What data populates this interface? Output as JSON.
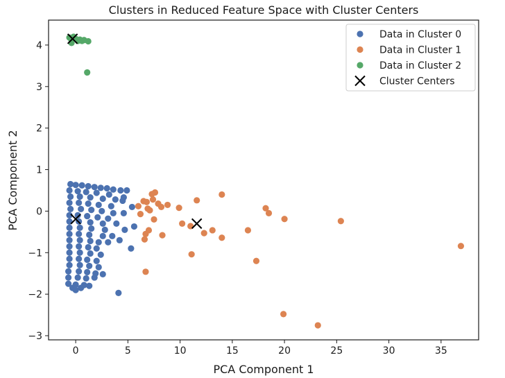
{
  "chart_data": {
    "type": "scatter",
    "title": "Clusters in Reduced Feature Space with Cluster Centers",
    "xlabel": "PCA Component 1",
    "ylabel": "PCA Component 2",
    "xlim": [
      -2.6,
      38.6
    ],
    "ylim": [
      -3.1,
      4.6
    ],
    "xticks": [
      0,
      5,
      10,
      15,
      20,
      25,
      30,
      35
    ],
    "yticks": [
      -3,
      -2,
      -1,
      0,
      1,
      2,
      3,
      4
    ],
    "grid": false,
    "legend_position": "top-right",
    "series": [
      {
        "name": "Data in Cluster 0",
        "color": "#4c72b0",
        "marker": "circle",
        "points": [
          [
            -0.5,
            0.65
          ],
          [
            0,
            0.63
          ],
          [
            0.6,
            0.62
          ],
          [
            1.2,
            0.6
          ],
          [
            1.8,
            0.58
          ],
          [
            2.4,
            0.56
          ],
          [
            3,
            0.55
          ],
          [
            3.6,
            0.52
          ],
          [
            4.3,
            0.5
          ],
          [
            4.9,
            0.5
          ],
          [
            -0.6,
            0.5
          ],
          [
            0.2,
            0.48
          ],
          [
            1,
            0.46
          ],
          [
            2,
            0.44
          ],
          [
            3.2,
            0.4
          ],
          [
            4.6,
            0.33
          ],
          [
            -0.5,
            0.35
          ],
          [
            0.4,
            0.35
          ],
          [
            1.4,
            0.33
          ],
          [
            2.6,
            0.3
          ],
          [
            3.8,
            0.28
          ],
          [
            4.5,
            0.25
          ],
          [
            -0.6,
            0.2
          ],
          [
            0.3,
            0.2
          ],
          [
            1.2,
            0.18
          ],
          [
            2.2,
            0.15
          ],
          [
            3.4,
            0.12
          ],
          [
            5.4,
            0.1
          ],
          [
            -0.5,
            0.05
          ],
          [
            0.5,
            0.05
          ],
          [
            1.5,
            0.03
          ],
          [
            2.5,
            0
          ],
          [
            3.6,
            -0.05
          ],
          [
            4.6,
            -0.05
          ],
          [
            -0.6,
            -0.1
          ],
          [
            0.2,
            -0.1
          ],
          [
            1.1,
            -0.12
          ],
          [
            2.1,
            -0.15
          ],
          [
            3.1,
            -0.18
          ],
          [
            -0.6,
            -0.25
          ],
          [
            0.3,
            -0.25
          ],
          [
            1.4,
            -0.27
          ],
          [
            2.6,
            -0.3
          ],
          [
            3.9,
            -0.3
          ],
          [
            5.6,
            -0.37
          ],
          [
            -0.6,
            -0.4
          ],
          [
            0.4,
            -0.4
          ],
          [
            1.5,
            -0.42
          ],
          [
            2.8,
            -0.45
          ],
          [
            4.7,
            -0.45
          ],
          [
            -0.6,
            -0.55
          ],
          [
            0.3,
            -0.55
          ],
          [
            1.3,
            -0.57
          ],
          [
            2.6,
            -0.6
          ],
          [
            3.5,
            -0.6
          ],
          [
            -0.6,
            -0.7
          ],
          [
            0.4,
            -0.7
          ],
          [
            1.4,
            -0.72
          ],
          [
            2.2,
            -0.75
          ],
          [
            3.1,
            -0.75
          ],
          [
            4.2,
            -0.7
          ],
          [
            -0.6,
            -0.85
          ],
          [
            0.3,
            -0.85
          ],
          [
            1.2,
            -0.87
          ],
          [
            2,
            -0.9
          ],
          [
            5.3,
            -0.9
          ],
          [
            -0.6,
            -1
          ],
          [
            0.4,
            -1
          ],
          [
            1.4,
            -1.02
          ],
          [
            2.4,
            -1.05
          ],
          [
            -0.6,
            -1.15
          ],
          [
            0.3,
            -1.15
          ],
          [
            1.1,
            -1.17
          ],
          [
            2,
            -1.2
          ],
          [
            -0.6,
            -1.3
          ],
          [
            0.4,
            -1.3
          ],
          [
            1.3,
            -1.32
          ],
          [
            2.2,
            -1.35
          ],
          [
            -0.7,
            -1.45
          ],
          [
            0.3,
            -1.45
          ],
          [
            1.1,
            -1.47
          ],
          [
            1.9,
            -1.5
          ],
          [
            2.6,
            -1.52
          ],
          [
            -0.7,
            -1.6
          ],
          [
            0.2,
            -1.6
          ],
          [
            1,
            -1.62
          ],
          [
            1.8,
            -1.6
          ],
          [
            -0.7,
            -1.75
          ],
          [
            0,
            -1.77
          ],
          [
            0.8,
            -1.78
          ],
          [
            1.3,
            -1.8
          ],
          [
            -0.3,
            -1.85
          ],
          [
            0.5,
            -1.85
          ],
          [
            0,
            -1.9
          ],
          [
            4.1,
            -1.97
          ]
        ]
      },
      {
        "name": "Data in Cluster 1",
        "color": "#dd8452",
        "marker": "circle",
        "points": [
          [
            6,
            0.12
          ],
          [
            6.5,
            0.24
          ],
          [
            6.9,
            0.06
          ],
          [
            7.1,
            0.02
          ],
          [
            7.3,
            0.41
          ],
          [
            7.6,
            0.45
          ],
          [
            7.9,
            0.18
          ],
          [
            8.2,
            0.1
          ],
          [
            6.8,
            0.22
          ],
          [
            8.8,
            0.15
          ],
          [
            7.4,
            0.28
          ],
          [
            9.9,
            0.08
          ],
          [
            11.6,
            0.26
          ],
          [
            14,
            0.4
          ],
          [
            18.2,
            0.07
          ],
          [
            18.5,
            -0.05
          ],
          [
            6.2,
            -0.07
          ],
          [
            7.5,
            -0.2
          ],
          [
            6.7,
            -0.55
          ],
          [
            6.6,
            -0.68
          ],
          [
            7,
            -0.46
          ],
          [
            8.3,
            -0.58
          ],
          [
            10.2,
            -0.3
          ],
          [
            11,
            -0.36
          ],
          [
            12.3,
            -0.53
          ],
          [
            13.1,
            -0.46
          ],
          [
            14,
            -0.64
          ],
          [
            16.5,
            -0.46
          ],
          [
            20,
            -0.19
          ],
          [
            25.4,
            -0.24
          ],
          [
            11.1,
            -1.04
          ],
          [
            17.3,
            -1.2
          ],
          [
            6.7,
            -1.46
          ],
          [
            36.9,
            -0.84
          ],
          [
            19.9,
            -2.48
          ],
          [
            23.2,
            -2.75
          ]
        ]
      },
      {
        "name": "Data in Cluster 2",
        "color": "#55a868",
        "marker": "circle",
        "points": [
          [
            -0.6,
            4.18
          ],
          [
            -0.4,
            4.12
          ],
          [
            -0.2,
            4.2
          ],
          [
            0,
            4.15
          ],
          [
            0.2,
            4.1
          ],
          [
            0.4,
            4.13
          ],
          [
            0.6,
            4.1
          ],
          [
            0.8,
            4.12
          ],
          [
            -0.4,
            4.05
          ],
          [
            1.2,
            4.09
          ],
          [
            1.1,
            3.34
          ]
        ]
      },
      {
        "name": "Cluster Centers",
        "color": "#000000",
        "marker": "x",
        "points": [
          [
            -0.3,
            4.15
          ],
          [
            0,
            -0.19
          ],
          [
            11.6,
            -0.3
          ]
        ]
      }
    ]
  }
}
